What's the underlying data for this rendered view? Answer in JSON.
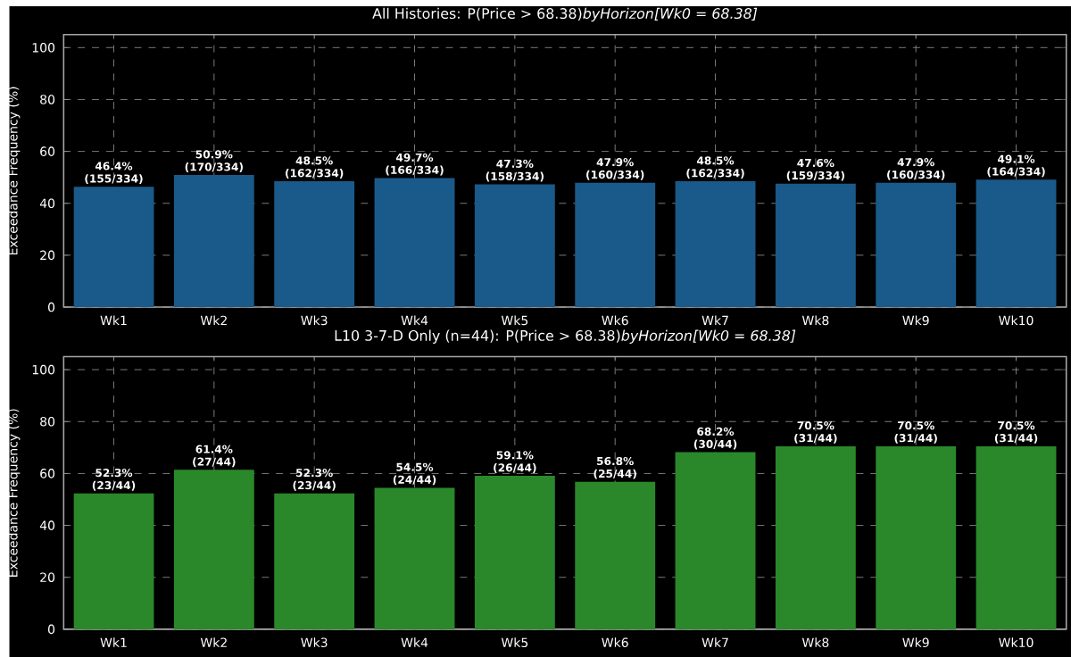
{
  "chart_data": [
    {
      "type": "bar",
      "title": "All Histories: P(Price > 68.38)*byHorizon[Wk0 = 68.38]*",
      "ylabel": "Exceedance Frequency (%)",
      "categories": [
        "Wk1",
        "Wk2",
        "Wk3",
        "Wk4",
        "Wk5",
        "Wk6",
        "Wk7",
        "Wk8",
        "Wk9",
        "Wk10"
      ],
      "values": [
        46.4,
        50.9,
        48.5,
        49.7,
        47.3,
        47.9,
        48.5,
        47.6,
        47.9,
        49.1
      ],
      "color": "#1a5a8a",
      "value_labels": [
        "46.4% (155/334)",
        "50.9% (170/334)",
        "48.5% (162/334)",
        "49.7% (166/334)",
        "47.3% (158/334)",
        "47.9% (160/334)",
        "48.5% (162/334)",
        "47.6% (159/334)",
        "47.9% (160/334)",
        "49.1% (164/334)"
      ],
      "ylim": [
        0,
        105
      ],
      "yticks": [
        0,
        20,
        40,
        60,
        80,
        100
      ],
      "grid": true
    },
    {
      "type": "bar",
      "title": "L10 3-7-D Only (n=44): P(Price > 68.38)*byHorizon[Wk0 = 68.38]*",
      "ylabel": "Exceedance Frequency (%)",
      "categories": [
        "Wk1",
        "Wk2",
        "Wk3",
        "Wk4",
        "Wk5",
        "Wk6",
        "Wk7",
        "Wk8",
        "Wk9",
        "Wk10"
      ],
      "values": [
        52.3,
        61.4,
        52.3,
        54.5,
        59.1,
        56.8,
        68.2,
        70.5,
        70.5,
        70.5
      ],
      "color": "#2a882a",
      "value_labels": [
        "52.3% (23/44)",
        "61.4% (27/44)",
        "52.3% (23/44)",
        "54.5% (24/44)",
        "59.1% (26/44)",
        "56.8% (25/44)",
        "68.2% (30/44)",
        "70.5% (31/44)",
        "70.5% (31/44)",
        "70.5% (31/44)"
      ],
      "ylim": [
        0,
        105
      ],
      "yticks": [
        0,
        20,
        40,
        60,
        80,
        100
      ],
      "grid": true
    }
  ]
}
